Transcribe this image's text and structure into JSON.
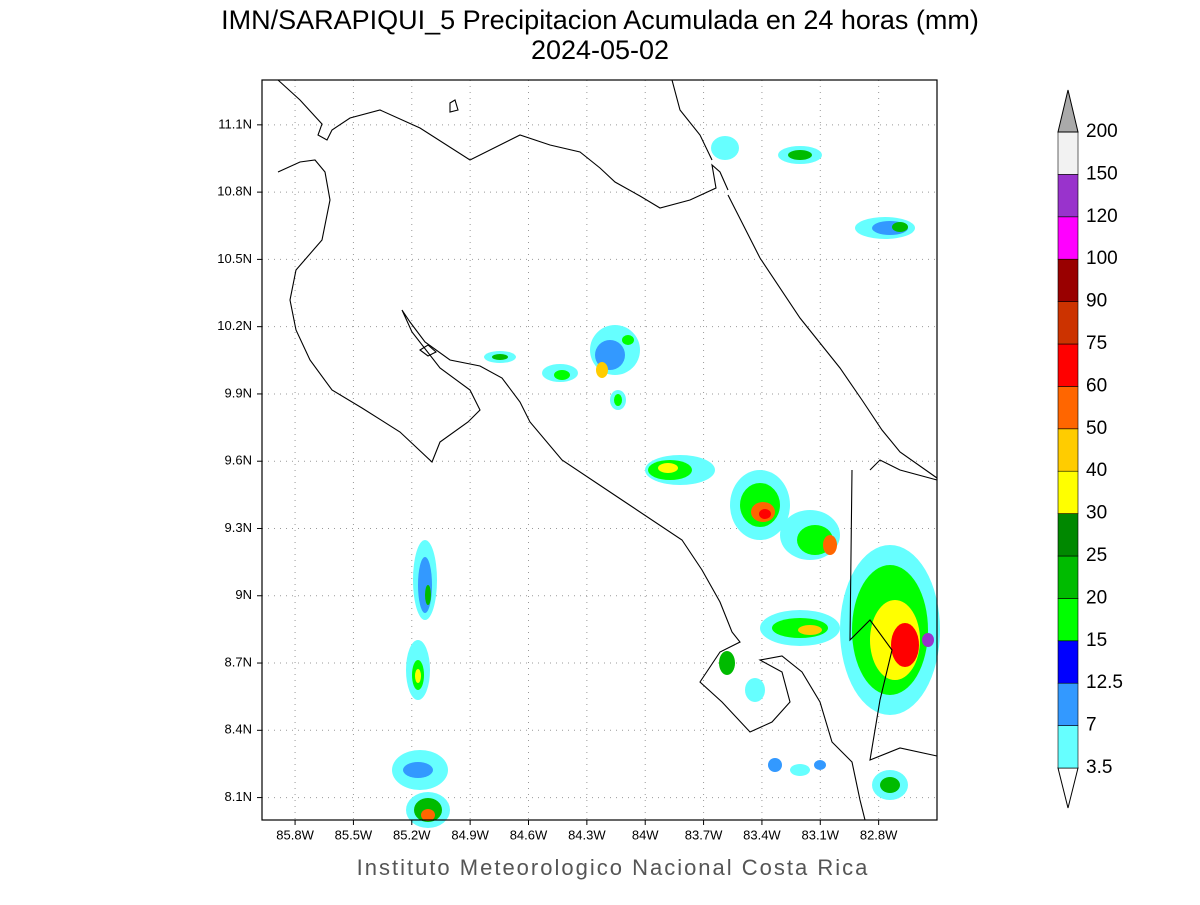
{
  "title": "IMN/SARAPIQUI_5 Precipitacion Acumulada en 24 horas (mm)",
  "subtitle": "2024-05-02",
  "map": {
    "xlim": [
      -85.97,
      -82.5
    ],
    "ylim": [
      8.0,
      11.3
    ],
    "xticks": [
      {
        "value": -85.8,
        "label": "85.8W"
      },
      {
        "value": -85.5,
        "label": "85.5W"
      },
      {
        "value": -85.2,
        "label": "85.2W"
      },
      {
        "value": -84.9,
        "label": "84.9W"
      },
      {
        "value": -84.6,
        "label": "84.6W"
      },
      {
        "value": -84.3,
        "label": "84.3W"
      },
      {
        "value": -84.0,
        "label": "84W"
      },
      {
        "value": -83.7,
        "label": "83.7W"
      },
      {
        "value": -83.4,
        "label": "83.4W"
      },
      {
        "value": -83.1,
        "label": "83.1W"
      },
      {
        "value": -82.8,
        "label": "82.8W"
      }
    ],
    "yticks": [
      {
        "value": 8.1,
        "label": "8.1N"
      },
      {
        "value": 8.4,
        "label": "8.4N"
      },
      {
        "value": 8.7,
        "label": "8.7N"
      },
      {
        "value": 9.0,
        "label": "9N"
      },
      {
        "value": 9.3,
        "label": "9.3N"
      },
      {
        "value": 9.6,
        "label": "9.6N"
      },
      {
        "value": 9.9,
        "label": "9.9N"
      },
      {
        "value": 10.2,
        "label": "10.2N"
      },
      {
        "value": 10.5,
        "label": "10.5N"
      },
      {
        "value": 10.8,
        "label": "10.8N"
      },
      {
        "value": 11.1,
        "label": "11.1N"
      }
    ],
    "grid": true
  },
  "colorbar": {
    "levels": [
      3.5,
      7,
      12.5,
      15,
      20,
      25,
      30,
      40,
      50,
      60,
      75,
      90,
      100,
      120,
      150,
      200
    ],
    "colors": [
      "#ffffff",
      "#66ffff",
      "#3399ff",
      "#0000ff",
      "#00ff00",
      "#00bb00",
      "#008800",
      "#ffff00",
      "#ffcc00",
      "#ff6600",
      "#ff0000",
      "#cc3300",
      "#990000",
      "#ff00ff",
      "#9933cc",
      "#f2f2f2",
      "#aaaaaa"
    ]
  },
  "footer": "Instituto Meteorologico Nacional Costa Rica"
}
